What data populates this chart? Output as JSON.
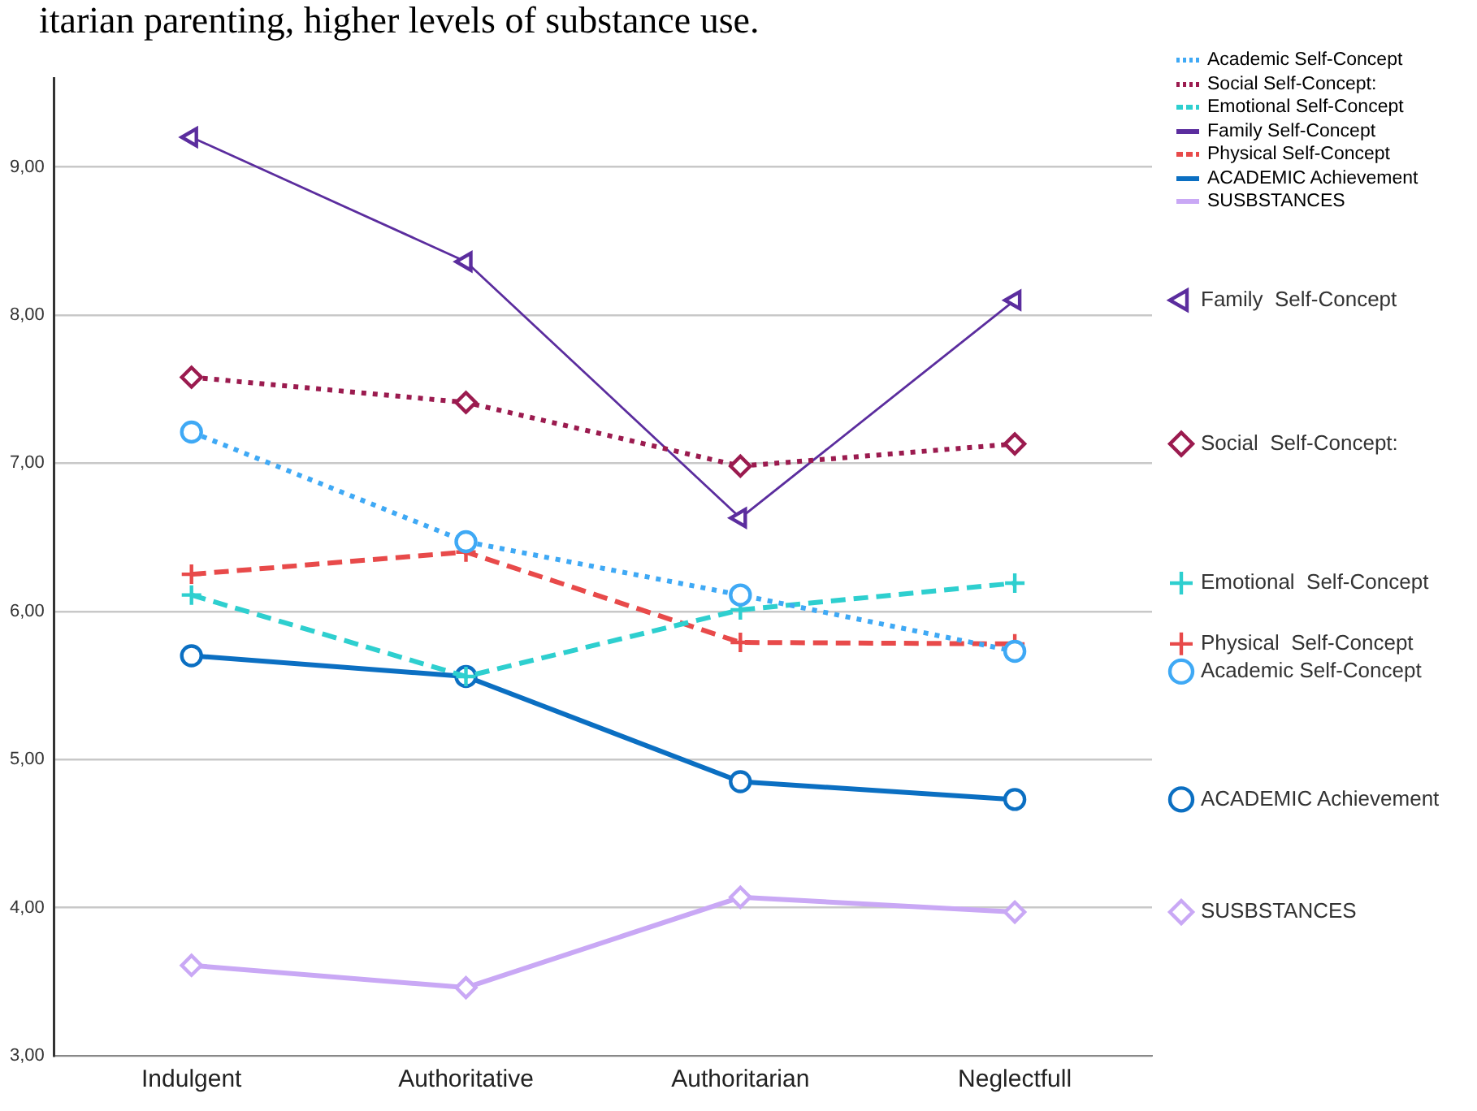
{
  "chart_data": {
    "type": "line",
    "annotations": [
      "itarian parenting, higher levels of substance use."
    ],
    "categories": [
      "Indulgent",
      "Authoritative",
      "Authoritarian",
      "Neglectfull"
    ],
    "series": [
      {
        "name": "Academic Self-Concept",
        "color": "#3fa9f5",
        "values": [
          7.21,
          6.47,
          6.11,
          5.73
        ],
        "line_style": "dotted",
        "marker": "circle"
      },
      {
        "name": "Social  Self-Concept:",
        "color": "#9b1b4f",
        "values": [
          7.58,
          7.41,
          6.98,
          7.13
        ],
        "line_style": "dotted",
        "marker": "diamond"
      },
      {
        "name": "Emotional  Self-Concept",
        "color": "#2ecfcf",
        "values": [
          6.11,
          5.56,
          6.01,
          6.19
        ],
        "line_style": "dashed",
        "marker": "cross"
      },
      {
        "name": "Family  Self-Concept",
        "color": "#5b2d9e",
        "values": [
          9.2,
          8.36,
          6.63,
          8.1
        ],
        "line_style": "solid",
        "marker": "triangle"
      },
      {
        "name": "Physical  Self-Concept",
        "color": "#e84a4a",
        "values": [
          6.25,
          6.4,
          5.79,
          5.78
        ],
        "line_style": "dashed",
        "marker": "cross"
      },
      {
        "name": "ACADEMIC Achievement",
        "color": "#0b6fc2",
        "values": [
          5.7,
          5.56,
          4.85,
          4.73
        ],
        "line_style": "solid",
        "marker": "circle"
      },
      {
        "name": "SUSBSTANCES",
        "color": "#c9a8f5",
        "values": [
          3.61,
          3.46,
          4.07,
          3.97
        ],
        "line_style": "solid",
        "marker": "diamond"
      }
    ],
    "ylim": [
      3,
      9.6
    ],
    "yticks": [
      {
        "value": 3,
        "label": "3,00"
      },
      {
        "value": 4,
        "label": "4,00"
      },
      {
        "value": 5,
        "label": "5,00"
      },
      {
        "value": 6,
        "label": "6,00"
      },
      {
        "value": 7,
        "label": "7,00"
      },
      {
        "value": 8,
        "label": "8,00"
      },
      {
        "value": 9,
        "label": "9,00"
      }
    ],
    "grid": "y",
    "legend": "right"
  }
}
